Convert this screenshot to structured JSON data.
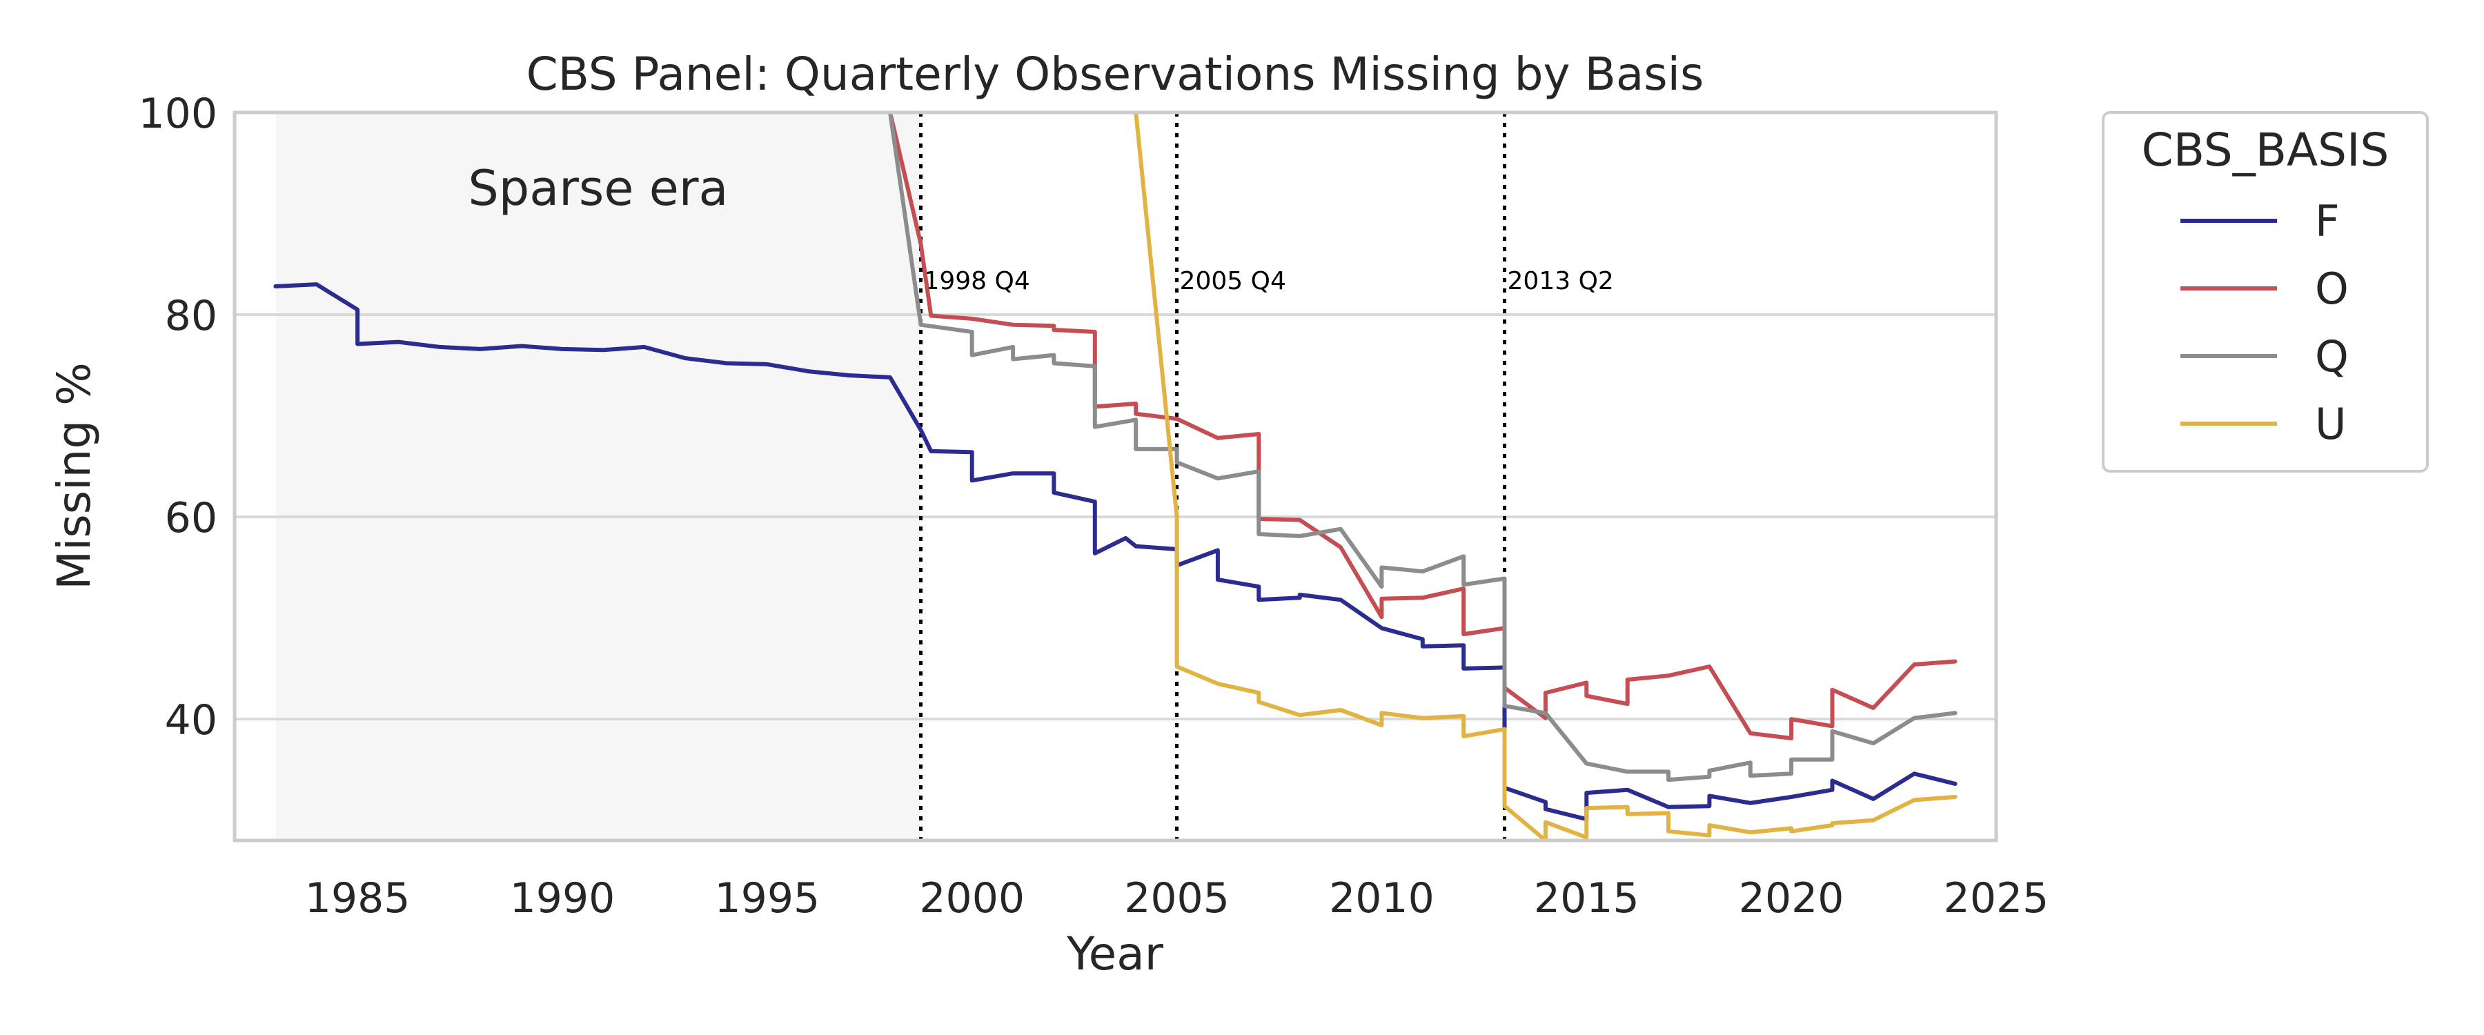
{
  "chart_data": {
    "type": "line",
    "title": "CBS Panel: Quarterly Observations Missing by Basis",
    "xlabel": "Year",
    "ylabel": "Missing %",
    "xlim": [
      1982,
      2025
    ],
    "ylim": [
      28,
      100
    ],
    "xticks": [
      "1985",
      "1990",
      "1995",
      "2000",
      "2005",
      "2010",
      "2015",
      "2020",
      "2025"
    ],
    "yticks": [
      "40",
      "60",
      "80",
      "100"
    ],
    "grid": "horizontal",
    "legend": {
      "title": "CBS_BASIS",
      "placement": "outside-right"
    },
    "shaded_region": {
      "x": [
        1983,
        1998.75
      ],
      "label": "Sparse era"
    },
    "vlines": [
      {
        "x": 1998.75,
        "label": "1998 Q4"
      },
      {
        "x": 2005.0,
        "label": "2005 Q4"
      },
      {
        "x": 2013.0,
        "label": "2013 Q2"
      }
    ],
    "series": [
      {
        "name": "F",
        "color": "#2a2d8f",
        "points": [
          [
            1983.0,
            82.8
          ],
          [
            1984.0,
            83.0
          ],
          [
            1985.0,
            80.5
          ],
          [
            1985.0,
            77.1
          ],
          [
            1986.0,
            77.3
          ],
          [
            1987.0,
            76.8
          ],
          [
            1988.0,
            76.6
          ],
          [
            1989.0,
            76.9
          ],
          [
            1990.0,
            76.6
          ],
          [
            1991.0,
            76.5
          ],
          [
            1992.0,
            76.8
          ],
          [
            1993.0,
            75.7
          ],
          [
            1994.0,
            75.2
          ],
          [
            1995.0,
            75.1
          ],
          [
            1996.0,
            74.4
          ],
          [
            1997.0,
            74.0
          ],
          [
            1998.0,
            73.8
          ],
          [
            1998.75,
            68.6
          ],
          [
            1999.0,
            66.5
          ],
          [
            2000.0,
            66.4
          ],
          [
            2000.0,
            63.6
          ],
          [
            2001.0,
            64.3
          ],
          [
            2002.0,
            64.3
          ],
          [
            2002.0,
            62.4
          ],
          [
            2003.0,
            61.5
          ],
          [
            2003.0,
            56.4
          ],
          [
            2003.75,
            57.9
          ],
          [
            2004.0,
            57.1
          ],
          [
            2005.0,
            56.8
          ],
          [
            2005.0,
            55.2
          ],
          [
            2006.0,
            56.7
          ],
          [
            2006.0,
            53.8
          ],
          [
            2007.0,
            53.1
          ],
          [
            2007.0,
            51.8
          ],
          [
            2008.0,
            52.0
          ],
          [
            2008.0,
            52.3
          ],
          [
            2009.0,
            51.8
          ],
          [
            2010.0,
            49.0
          ],
          [
            2011.0,
            47.9
          ],
          [
            2011.0,
            47.2
          ],
          [
            2012.0,
            47.3
          ],
          [
            2012.0,
            45.0
          ],
          [
            2013.0,
            45.1
          ],
          [
            2013.0,
            33.2
          ],
          [
            2014.0,
            31.8
          ],
          [
            2014.0,
            31.1
          ],
          [
            2015.0,
            30.1
          ],
          [
            2015.0,
            32.7
          ],
          [
            2016.0,
            33.0
          ],
          [
            2017.0,
            31.3
          ],
          [
            2018.0,
            31.4
          ],
          [
            2018.0,
            32.4
          ],
          [
            2019.0,
            31.7
          ],
          [
            2020.0,
            32.3
          ],
          [
            2021.0,
            33.0
          ],
          [
            2021.0,
            33.9
          ],
          [
            2022.0,
            32.1
          ],
          [
            2023.0,
            34.6
          ],
          [
            2024.0,
            33.6
          ]
        ]
      },
      {
        "name": "O",
        "color": "#c44e52",
        "points": [
          [
            1998.0,
            100.0
          ],
          [
            1998.75,
            87.0
          ],
          [
            1999.0,
            79.9
          ],
          [
            2000.0,
            79.6
          ],
          [
            2001.0,
            79.0
          ],
          [
            2002.0,
            78.9
          ],
          [
            2002.0,
            78.5
          ],
          [
            2003.0,
            78.3
          ],
          [
            2003.0,
            70.9
          ],
          [
            2004.0,
            71.2
          ],
          [
            2004.0,
            70.2
          ],
          [
            2005.0,
            69.7
          ],
          [
            2006.0,
            67.8
          ],
          [
            2007.0,
            68.2
          ],
          [
            2007.0,
            59.8
          ],
          [
            2008.0,
            59.7
          ],
          [
            2009.0,
            57.0
          ],
          [
            2010.0,
            50.1
          ],
          [
            2010.0,
            51.9
          ],
          [
            2011.0,
            52.0
          ],
          [
            2012.0,
            52.9
          ],
          [
            2012.0,
            48.4
          ],
          [
            2013.0,
            49.0
          ],
          [
            2013.0,
            43.1
          ],
          [
            2014.0,
            40.1
          ],
          [
            2014.0,
            42.6
          ],
          [
            2015.0,
            43.6
          ],
          [
            2015.0,
            42.3
          ],
          [
            2016.0,
            41.5
          ],
          [
            2016.0,
            43.9
          ],
          [
            2017.0,
            44.3
          ],
          [
            2018.0,
            45.2
          ],
          [
            2019.0,
            38.6
          ],
          [
            2020.0,
            38.1
          ],
          [
            2020.0,
            40.0
          ],
          [
            2021.0,
            39.3
          ],
          [
            2021.0,
            42.9
          ],
          [
            2022.0,
            41.1
          ],
          [
            2023.0,
            45.4
          ],
          [
            2024.0,
            45.7
          ]
        ]
      },
      {
        "name": "Q",
        "color": "#8c8c8c",
        "points": [
          [
            1998.0,
            100.0
          ],
          [
            1998.75,
            79.0
          ],
          [
            2000.0,
            78.3
          ],
          [
            2000.0,
            76.0
          ],
          [
            2001.0,
            76.8
          ],
          [
            2001.0,
            75.6
          ],
          [
            2002.0,
            76.0
          ],
          [
            2002.0,
            75.2
          ],
          [
            2003.0,
            74.9
          ],
          [
            2003.0,
            68.9
          ],
          [
            2004.0,
            69.6
          ],
          [
            2004.0,
            66.7
          ],
          [
            2005.0,
            66.7
          ],
          [
            2005.0,
            65.4
          ],
          [
            2006.0,
            63.8
          ],
          [
            2007.0,
            64.5
          ],
          [
            2007.0,
            58.3
          ],
          [
            2008.0,
            58.1
          ],
          [
            2009.0,
            58.8
          ],
          [
            2010.0,
            53.1
          ],
          [
            2010.0,
            55.0
          ],
          [
            2011.0,
            54.6
          ],
          [
            2012.0,
            56.1
          ],
          [
            2012.0,
            53.3
          ],
          [
            2013.0,
            53.9
          ],
          [
            2013.0,
            41.3
          ],
          [
            2014.0,
            40.6
          ],
          [
            2015.0,
            35.6
          ],
          [
            2016.0,
            34.8
          ],
          [
            2017.0,
            34.8
          ],
          [
            2017.0,
            34.0
          ],
          [
            2018.0,
            34.3
          ],
          [
            2018.0,
            34.9
          ],
          [
            2019.0,
            35.7
          ],
          [
            2019.0,
            34.4
          ],
          [
            2020.0,
            34.6
          ],
          [
            2020.0,
            36.0
          ],
          [
            2021.0,
            36.0
          ],
          [
            2021.0,
            38.8
          ],
          [
            2022.0,
            37.6
          ],
          [
            2023.0,
            40.1
          ],
          [
            2024.0,
            40.6
          ]
        ]
      },
      {
        "name": "U",
        "color": "#e0b343",
        "points": [
          [
            2004.0,
            100.0
          ],
          [
            2005.0,
            60.0
          ],
          [
            2005.0,
            45.2
          ],
          [
            2006.0,
            43.5
          ],
          [
            2007.0,
            42.6
          ],
          [
            2007.0,
            41.7
          ],
          [
            2008.0,
            40.4
          ],
          [
            2009.0,
            40.9
          ],
          [
            2010.0,
            39.4
          ],
          [
            2010.0,
            40.6
          ],
          [
            2011.0,
            40.1
          ],
          [
            2012.0,
            40.3
          ],
          [
            2012.0,
            38.3
          ],
          [
            2013.0,
            39.0
          ],
          [
            2013.0,
            31.4
          ],
          [
            2014.0,
            28.0
          ],
          [
            2014.0,
            29.8
          ],
          [
            2015.0,
            28.3
          ],
          [
            2015.0,
            31.2
          ],
          [
            2016.0,
            31.3
          ],
          [
            2016.0,
            30.6
          ],
          [
            2017.0,
            30.7
          ],
          [
            2017.0,
            28.9
          ],
          [
            2018.0,
            28.5
          ],
          [
            2018.0,
            29.5
          ],
          [
            2019.0,
            28.8
          ],
          [
            2020.0,
            29.2
          ],
          [
            2020.0,
            28.9
          ],
          [
            2021.0,
            29.5
          ],
          [
            2021.0,
            29.7
          ],
          [
            2022.0,
            30.0
          ],
          [
            2023.0,
            32.0
          ],
          [
            2024.0,
            32.3
          ]
        ]
      }
    ]
  }
}
